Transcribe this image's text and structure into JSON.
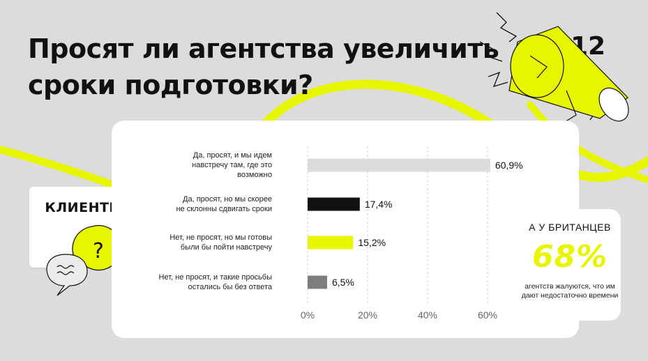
{
  "page": {
    "title": "Просят ли агентства увеличить сроки подготовки?",
    "number": "12"
  },
  "clients_label": "КЛИЕНТЫ",
  "britain": {
    "title": "А У БРИТАНЦЕВ",
    "value": "68%",
    "description": "агентств жалуются, что им дают недостаточно времени"
  },
  "colors": {
    "accent": "#e8f500",
    "bar_gray": "#dcdcdc",
    "bar_black": "#111111",
    "bar_yellow": "#e8f500",
    "bar_dark_gray": "#7d7d7d",
    "background": "#dcdcdc"
  },
  "icons": [
    "megaphone-icon",
    "question-bubble-icon",
    "speech-bubble-icon"
  ],
  "chart_data": {
    "type": "bar",
    "orientation": "horizontal",
    "categories": [
      "Да, просят, и мы идем навстречу там, где это возможно",
      "Да, просят, но мы скорее не склонны сдвигать сроки",
      "Нет, не просят, но мы готовы были бы пойти навстречу",
      "Нет, не просят, и такие просьбы остались бы без ответа"
    ],
    "values": [
      60.9,
      17.4,
      15.2,
      6.5
    ],
    "value_labels": [
      "60,9%",
      "17,4%",
      "15,2%",
      "6,5%"
    ],
    "bar_colors": [
      "#dcdcdc",
      "#111111",
      "#e8f500",
      "#7d7d7d"
    ],
    "xlim": [
      0,
      60
    ],
    "xticks": [
      0,
      20,
      40,
      60
    ],
    "xtick_labels": [
      "0%",
      "20%",
      "40%",
      "60%"
    ],
    "grid": "vertical dashed",
    "title": "",
    "xlabel": "",
    "ylabel": ""
  }
}
